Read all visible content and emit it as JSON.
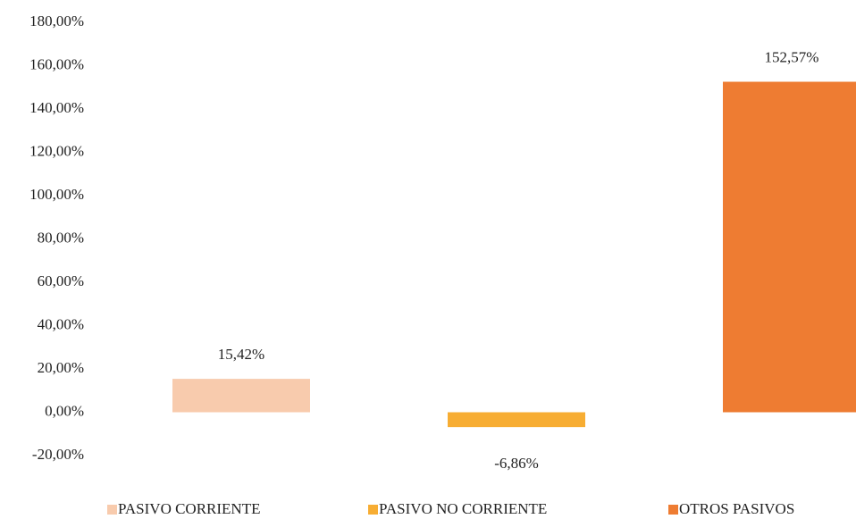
{
  "chart_data": {
    "type": "bar",
    "series": [
      {
        "name": "PASIVO CORRIENTE",
        "color": "#f8cbad",
        "values": [
          15.42
        ],
        "value_labels": [
          "15,42%"
        ]
      },
      {
        "name": "PASIVO NO CORRIENTE",
        "color": "#f7ad33",
        "values": [
          -6.86
        ],
        "value_labels": [
          "-6,86%"
        ]
      },
      {
        "name": "OTROS PASIVOS",
        "color": "#ee7c32",
        "values": [
          152.57
        ],
        "value_labels": [
          "152,57%"
        ]
      }
    ],
    "ylim": [
      -20,
      180
    ],
    "yticks": [
      {
        "value": -20,
        "label": "-20,00%"
      },
      {
        "value": 0,
        "label": "0,00%"
      },
      {
        "value": 20,
        "label": "20,00%"
      },
      {
        "value": 40,
        "label": "40,00%"
      },
      {
        "value": 60,
        "label": "60,00%"
      },
      {
        "value": 80,
        "label": "80,00%"
      },
      {
        "value": 100,
        "label": "100,00%"
      },
      {
        "value": 120,
        "label": "120,00%"
      },
      {
        "value": 140,
        "label": "140,00%"
      },
      {
        "value": 160,
        "label": "160,00%"
      },
      {
        "value": 180,
        "label": "180,00%"
      }
    ],
    "legend": "bottom"
  }
}
